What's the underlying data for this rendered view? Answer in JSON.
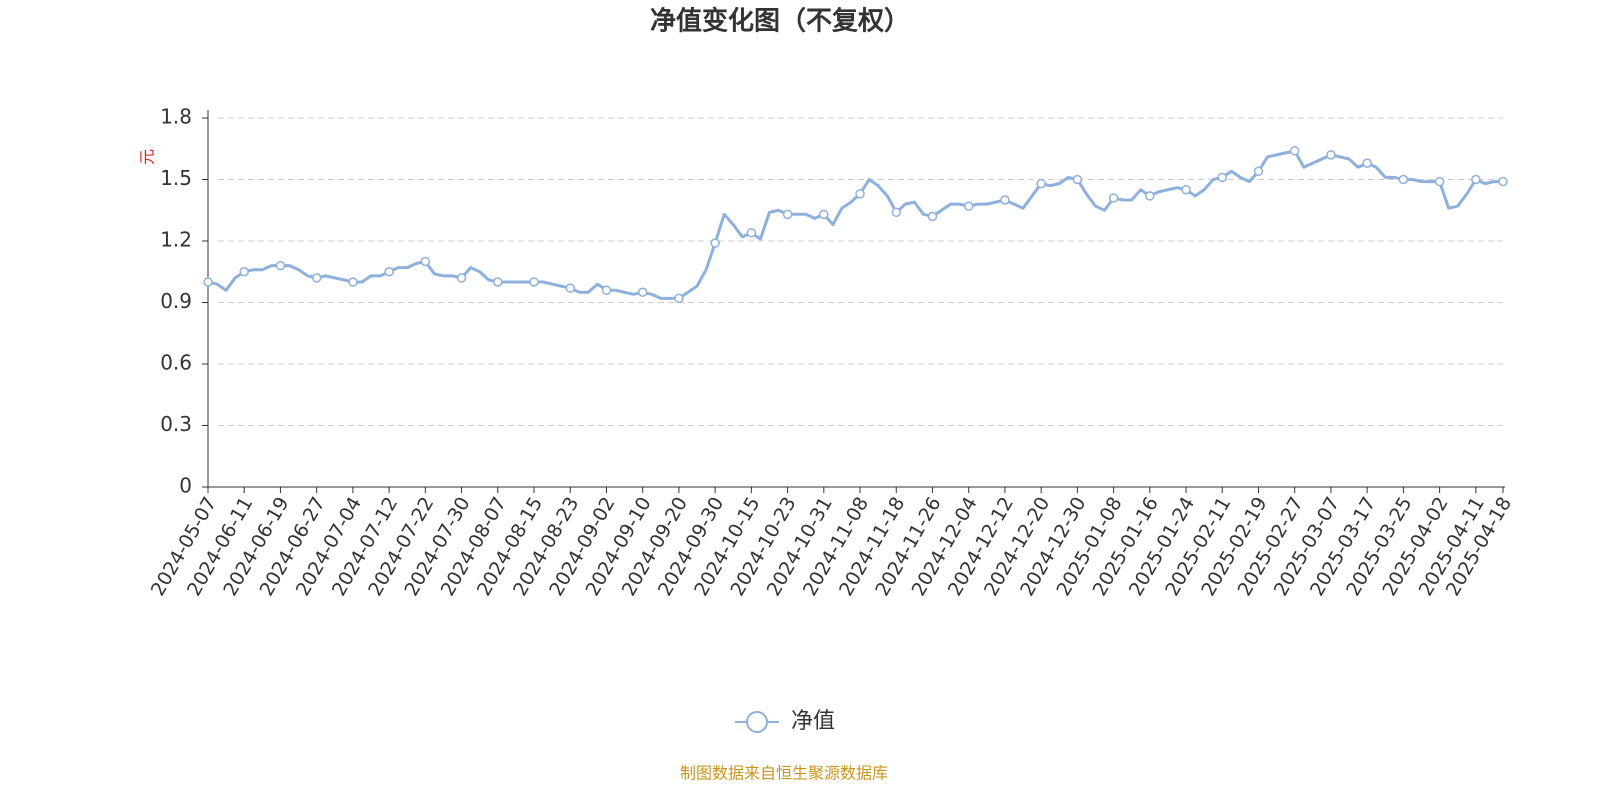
{
  "chart_data": {
    "type": "line",
    "title": "净值变化图（不复权）",
    "y_label": "元",
    "categories": [
      "2024-05-07",
      null,
      null,
      null,
      "2024-06-11",
      null,
      null,
      null,
      "2024-06-19",
      null,
      null,
      null,
      "2024-06-27",
      null,
      null,
      null,
      "2024-07-04",
      null,
      null,
      null,
      "2024-07-12",
      null,
      null,
      null,
      "2024-07-22",
      null,
      null,
      null,
      "2024-07-30",
      null,
      null,
      null,
      "2024-08-07",
      null,
      null,
      null,
      "2024-08-15",
      null,
      null,
      null,
      "2024-08-23",
      null,
      null,
      null,
      "2024-09-02",
      null,
      null,
      null,
      "2024-09-10",
      null,
      null,
      null,
      "2024-09-20",
      null,
      null,
      null,
      "2024-09-30",
      null,
      null,
      null,
      "2024-10-15",
      null,
      null,
      null,
      "2024-10-23",
      null,
      null,
      null,
      "2024-10-31",
      null,
      null,
      null,
      "2024-11-08",
      null,
      null,
      null,
      "2024-11-18",
      null,
      null,
      null,
      "2024-11-26",
      null,
      null,
      null,
      "2024-12-04",
      null,
      null,
      null,
      "2024-12-12",
      null,
      null,
      null,
      "2024-12-20",
      null,
      null,
      null,
      "2024-12-30",
      null,
      null,
      null,
      "2025-01-08",
      null,
      null,
      null,
      "2025-01-16",
      null,
      null,
      null,
      "2025-01-24",
      null,
      null,
      null,
      "2025-02-11",
      null,
      null,
      null,
      "2025-02-19",
      null,
      null,
      null,
      "2025-02-27",
      null,
      null,
      null,
      "2025-03-07",
      null,
      null,
      null,
      "2025-03-17",
      null,
      null,
      null,
      "2025-03-25",
      null,
      null,
      null,
      "2025-04-02",
      null,
      null,
      null,
      "2025-04-11",
      null,
      null,
      "2025-04-18"
    ],
    "series": [
      {
        "name": "净值",
        "color": "#8eb0dd",
        "values": [
          1.0,
          0.99,
          0.96,
          1.02,
          1.05,
          1.06,
          1.06,
          1.08,
          1.08,
          1.08,
          1.06,
          1.03,
          1.02,
          1.03,
          1.02,
          1.01,
          1.0,
          1.0,
          1.03,
          1.03,
          1.05,
          1.07,
          1.07,
          1.09,
          1.1,
          1.04,
          1.03,
          1.03,
          1.02,
          1.07,
          1.05,
          1.01,
          1.0,
          1.0,
          1.0,
          1.0,
          1.0,
          1.0,
          0.99,
          0.98,
          0.97,
          0.95,
          0.95,
          0.99,
          0.96,
          0.96,
          0.95,
          0.94,
          0.95,
          0.94,
          0.92,
          0.92,
          0.92,
          0.95,
          0.98,
          1.06,
          1.19,
          1.33,
          1.28,
          1.22,
          1.24,
          1.21,
          1.34,
          1.35,
          1.33,
          1.33,
          1.33,
          1.31,
          1.33,
          1.28,
          1.36,
          1.39,
          1.43,
          1.5,
          1.47,
          1.42,
          1.34,
          1.38,
          1.39,
          1.33,
          1.32,
          1.35,
          1.38,
          1.38,
          1.37,
          1.38,
          1.38,
          1.39,
          1.4,
          1.38,
          1.36,
          1.42,
          1.48,
          1.47,
          1.48,
          1.51,
          1.5,
          1.43,
          1.37,
          1.35,
          1.41,
          1.4,
          1.4,
          1.45,
          1.42,
          1.44,
          1.45,
          1.46,
          1.45,
          1.42,
          1.45,
          1.5,
          1.51,
          1.54,
          1.51,
          1.49,
          1.54,
          1.61,
          1.62,
          1.63,
          1.64,
          1.56,
          1.58,
          1.6,
          1.62,
          1.61,
          1.6,
          1.56,
          1.58,
          1.56,
          1.51,
          1.51,
          1.5,
          1.5,
          1.49,
          1.49,
          1.49,
          1.36,
          1.37,
          1.43,
          1.5,
          1.48,
          1.49,
          1.49
        ]
      }
    ],
    "ylim": [
      0,
      1.8
    ],
    "yticks": [
      0,
      0.3,
      0.6,
      0.9,
      1.2,
      1.5,
      1.8
    ],
    "grid": true,
    "legend": "bottom",
    "source": "制图数据来自恒生聚源数据库"
  }
}
